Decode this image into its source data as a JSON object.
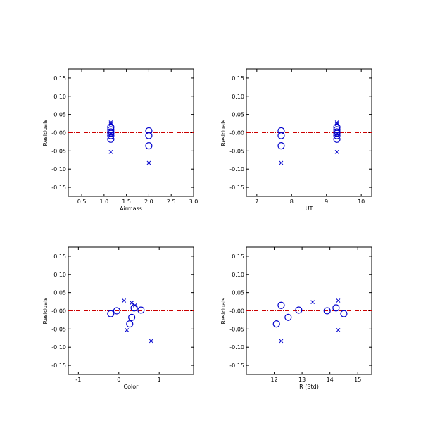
{
  "chart_data": [
    {
      "type": "scatter",
      "title": "",
      "xlabel": "Airmass",
      "ylabel": "Residuals",
      "xlim": [
        0.2,
        3.0
      ],
      "ylim": [
        -0.175,
        0.175
      ],
      "xticks": [
        0.5,
        1.0,
        1.5,
        2.0,
        2.5,
        3.0
      ],
      "xticklabels": [
        "0.5",
        "1.0",
        "1.5",
        "2.0",
        "2.5",
        "3.0"
      ],
      "yticks": [
        0.15,
        0.1,
        0.05,
        0.0,
        -0.05,
        -0.1,
        -0.15
      ],
      "yticklabels": [
        "0.15",
        "0.10",
        "0.05",
        "-0.00",
        "-0.05",
        "-0.10",
        "-0.15"
      ],
      "reference_line": 0,
      "series": [
        {
          "marker": "circle",
          "x": [
            1.15,
            1.15,
            1.15,
            1.15,
            1.15,
            1.15,
            2.0,
            2.0,
            2.0
          ],
          "y": [
            0.015,
            0.008,
            0.002,
            -0.002,
            -0.008,
            -0.018,
            0.005,
            -0.008,
            -0.036
          ]
        },
        {
          "marker": "x",
          "x": [
            1.15,
            1.15,
            1.15,
            1.15,
            2.0
          ],
          "y": [
            0.028,
            0.024,
            -0.004,
            -0.053,
            -0.083
          ]
        }
      ]
    },
    {
      "type": "scatter",
      "title": "",
      "xlabel": "UT",
      "ylabel": "Residuals",
      "xlim": [
        6.7,
        10.3
      ],
      "ylim": [
        -0.175,
        0.175
      ],
      "xticks": [
        7,
        8,
        9,
        10
      ],
      "xticklabels": [
        "7",
        "8",
        "9",
        "10"
      ],
      "yticks": [
        0.15,
        0.1,
        0.05,
        0.0,
        -0.05,
        -0.1,
        -0.15
      ],
      "yticklabels": [
        "0.15",
        "0.10",
        "0.05",
        "-0.00",
        "-0.05",
        "-0.10",
        "-0.15"
      ],
      "reference_line": 0,
      "series": [
        {
          "marker": "circle",
          "x": [
            7.7,
            7.7,
            7.7,
            9.3,
            9.3,
            9.3,
            9.3,
            9.3,
            9.3
          ],
          "y": [
            0.005,
            -0.008,
            -0.036,
            0.015,
            0.008,
            0.002,
            -0.002,
            -0.008,
            -0.018
          ]
        },
        {
          "marker": "x",
          "x": [
            7.7,
            9.3,
            9.3,
            9.3,
            9.3
          ],
          "y": [
            -0.083,
            0.028,
            0.024,
            -0.004,
            -0.053
          ]
        }
      ]
    },
    {
      "type": "scatter",
      "title": "",
      "xlabel": "Color",
      "ylabel": "Residuals",
      "xlim": [
        -1.25,
        1.85
      ],
      "ylim": [
        -0.175,
        0.175
      ],
      "xticks": [
        -1,
        0,
        1
      ],
      "xticklabels": [
        "-1",
        "0",
        "1"
      ],
      "yticks": [
        0.15,
        0.1,
        0.05,
        0.0,
        -0.05,
        -0.1,
        -0.15
      ],
      "yticklabels": [
        "0.15",
        "0.10",
        "0.05",
        "-0.00",
        "-0.05",
        "-0.10",
        "-0.15"
      ],
      "reference_line": 0,
      "series": [
        {
          "marker": "circle",
          "x": [
            -0.2,
            -0.05,
            0.27,
            0.32,
            0.38,
            0.55
          ],
          "y": [
            -0.008,
            0.0,
            -0.036,
            -0.018,
            0.008,
            0.002
          ]
        },
        {
          "marker": "x",
          "x": [
            0.13,
            0.2,
            0.32,
            0.4,
            0.8
          ],
          "y": [
            0.028,
            -0.053,
            0.022,
            0.015,
            -0.083
          ]
        }
      ]
    },
    {
      "type": "scatter",
      "title": "",
      "xlabel": "R (Std)",
      "ylabel": "Residuals",
      "xlim": [
        11.0,
        15.5
      ],
      "ylim": [
        -0.175,
        0.175
      ],
      "xticks": [
        12,
        13,
        14,
        15
      ],
      "xticklabels": [
        "12",
        "13",
        "14",
        "15"
      ],
      "yticks": [
        0.15,
        0.1,
        0.05,
        0.0,
        -0.05,
        -0.1,
        -0.15
      ],
      "yticklabels": [
        "0.15",
        "0.10",
        "0.05",
        "-0.00",
        "-0.05",
        "-0.10",
        "-0.15"
      ],
      "reference_line": 0,
      "series": [
        {
          "marker": "circle",
          "x": [
            12.08,
            12.25,
            12.5,
            12.88,
            13.9,
            14.22,
            14.5
          ],
          "y": [
            -0.036,
            0.015,
            -0.018,
            0.002,
            0.0,
            0.008,
            -0.008
          ]
        },
        {
          "marker": "x",
          "x": [
            12.25,
            13.38,
            14.3,
            14.3
          ],
          "y": [
            -0.083,
            0.024,
            0.028,
            -0.053
          ]
        }
      ]
    }
  ],
  "colors": {
    "markers": "#0000cc",
    "reference_line": "#cc0000",
    "axes": "#000000"
  }
}
